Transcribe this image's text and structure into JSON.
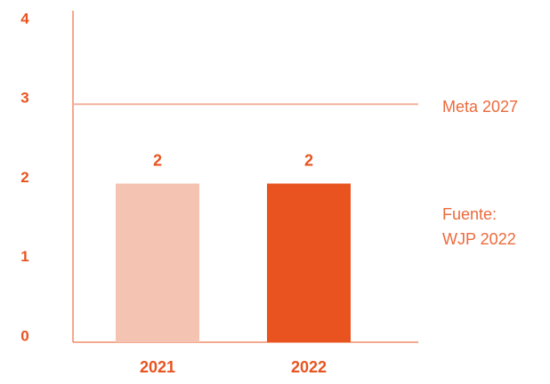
{
  "chart_data": {
    "type": "bar",
    "categories": [
      "2021",
      "2022"
    ],
    "values": [
      2,
      2
    ],
    "colors": [
      "#f5c3b1",
      "#e8531f"
    ],
    "ylim": [
      0,
      4
    ],
    "yticks": [
      0,
      1,
      2,
      3,
      4
    ],
    "target": {
      "value": 3,
      "label": "Meta 2027",
      "color": "#f3b29c"
    },
    "source": [
      "Fuente:",
      "WJP 2022"
    ]
  }
}
